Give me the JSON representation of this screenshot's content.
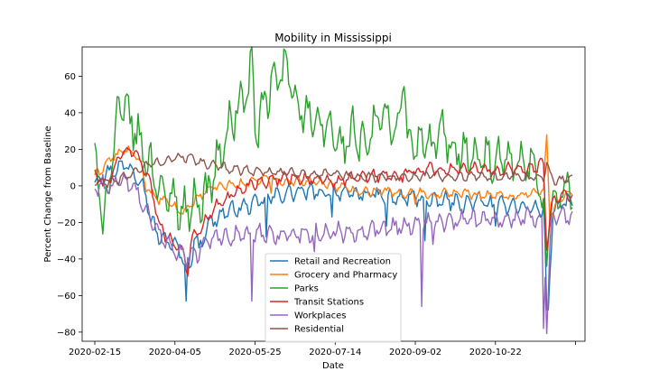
{
  "chart_data": {
    "type": "line",
    "title": "Mobility in Mississippi",
    "xlabel": "Date",
    "ylabel": "Percent Change from Baseline",
    "x_ticks": [
      "2020-02-15",
      "2020-04-05",
      "2020-05-25",
      "2020-07-14",
      "2020-09-02",
      "2020-10-22",
      ""
    ],
    "x_start": "2020-02-15",
    "x_end": "2020-12-09",
    "y_ticks": [
      60,
      40,
      20,
      0,
      -20,
      -40,
      -60,
      -80
    ],
    "ylim": [
      -85,
      76
    ],
    "grid": false,
    "legend_position": "lower-center",
    "series": [
      {
        "name": "Retail and Recreation",
        "color": "#1f77b4",
        "points": [
          [
            0,
            3
          ],
          [
            10,
            8
          ],
          [
            20,
            12
          ],
          [
            30,
            2
          ],
          [
            35,
            -18
          ],
          [
            40,
            -28
          ],
          [
            50,
            -32
          ],
          [
            55,
            -40
          ],
          [
            60,
            -45
          ],
          [
            62,
            -25
          ],
          [
            65,
            -35
          ],
          [
            70,
            -22
          ],
          [
            80,
            -15
          ],
          [
            90,
            -12
          ],
          [
            100,
            -10
          ],
          [
            110,
            -6
          ],
          [
            120,
            -4
          ],
          [
            130,
            -3
          ],
          [
            140,
            -4
          ],
          [
            150,
            -3
          ],
          [
            160,
            -5
          ],
          [
            170,
            -4
          ],
          [
            180,
            -6
          ],
          [
            190,
            -7
          ],
          [
            200,
            -6
          ],
          [
            210,
            -9
          ],
          [
            220,
            -8
          ],
          [
            230,
            -10
          ],
          [
            240,
            -8
          ],
          [
            250,
            -11
          ],
          [
            260,
            -10
          ],
          [
            270,
            -12
          ],
          [
            280,
            -13
          ],
          [
            283,
            -68
          ],
          [
            286,
            -12
          ],
          [
            295,
            -9
          ],
          [
            298,
            -9
          ]
        ],
        "dips": [
          [
            57,
            -63
          ],
          [
            107,
            -28
          ],
          [
            148,
            -17
          ],
          [
            182,
            -22
          ],
          [
            206,
            -30
          ],
          [
            250,
            -22
          ],
          [
            282,
            -68
          ]
        ]
      },
      {
        "name": "Grocery and Pharmacy",
        "color": "#ff7f0e",
        "points": [
          [
            0,
            5
          ],
          [
            10,
            15
          ],
          [
            20,
            20
          ],
          [
            28,
            14
          ],
          [
            32,
            0
          ],
          [
            36,
            -5
          ],
          [
            40,
            -8
          ],
          [
            45,
            -8
          ],
          [
            50,
            -12
          ],
          [
            55,
            -15
          ],
          [
            60,
            -10
          ],
          [
            70,
            -2
          ],
          [
            80,
            0
          ],
          [
            90,
            1
          ],
          [
            100,
            3
          ],
          [
            110,
            4
          ],
          [
            120,
            2
          ],
          [
            130,
            3
          ],
          [
            140,
            2
          ],
          [
            150,
            0
          ],
          [
            160,
            -2
          ],
          [
            170,
            -3
          ],
          [
            180,
            -2
          ],
          [
            190,
            -5
          ],
          [
            200,
            -3
          ],
          [
            210,
            -5
          ],
          [
            220,
            -4
          ],
          [
            230,
            -4
          ],
          [
            240,
            -5
          ],
          [
            250,
            -5
          ],
          [
            260,
            -6
          ],
          [
            270,
            -4
          ],
          [
            280,
            -3
          ],
          [
            282,
            28
          ],
          [
            284,
            -20
          ],
          [
            290,
            -6
          ],
          [
            298,
            -4
          ]
        ],
        "dips": [
          [
            110,
            -4
          ],
          [
            200,
            -10
          ],
          [
            282,
            28
          ]
        ]
      },
      {
        "name": "Parks",
        "color": "#2ca02c",
        "points": [
          [
            0,
            17
          ],
          [
            5,
            -20
          ],
          [
            10,
            10
          ],
          [
            15,
            40
          ],
          [
            20,
            42
          ],
          [
            25,
            30
          ],
          [
            30,
            20
          ],
          [
            35,
            10
          ],
          [
            40,
            2
          ],
          [
            45,
            -10
          ],
          [
            50,
            -5
          ],
          [
            55,
            -15
          ],
          [
            60,
            -10
          ],
          [
            65,
            -8
          ],
          [
            70,
            -5
          ],
          [
            75,
            10
          ],
          [
            80,
            20
          ],
          [
            85,
            35
          ],
          [
            90,
            45
          ],
          [
            95,
            50
          ],
          [
            98,
            70
          ],
          [
            100,
            30
          ],
          [
            105,
            40
          ],
          [
            110,
            55
          ],
          [
            115,
            60
          ],
          [
            120,
            65
          ],
          [
            125,
            50
          ],
          [
            130,
            40
          ],
          [
            135,
            35
          ],
          [
            140,
            30
          ],
          [
            145,
            35
          ],
          [
            150,
            25
          ],
          [
            155,
            20
          ],
          [
            160,
            30
          ],
          [
            165,
            25
          ],
          [
            170,
            20
          ],
          [
            175,
            35
          ],
          [
            180,
            40
          ],
          [
            185,
            30
          ],
          [
            190,
            35
          ],
          [
            193,
            65
          ],
          [
            195,
            25
          ],
          [
            200,
            20
          ],
          [
            205,
            25
          ],
          [
            210,
            20
          ],
          [
            215,
            30
          ],
          [
            220,
            25
          ],
          [
            225,
            20
          ],
          [
            230,
            20
          ],
          [
            235,
            15
          ],
          [
            240,
            15
          ],
          [
            245,
            15
          ],
          [
            250,
            10
          ],
          [
            255,
            15
          ],
          [
            260,
            10
          ],
          [
            265,
            10
          ],
          [
            270,
            10
          ],
          [
            275,
            8
          ],
          [
            280,
            -20
          ],
          [
            282,
            -34
          ],
          [
            285,
            -10
          ],
          [
            290,
            -5
          ],
          [
            298,
            0
          ]
        ],
        "dips": []
      },
      {
        "name": "Transit Stations",
        "color": "#d62728",
        "points": [
          [
            0,
            8
          ],
          [
            5,
            0
          ],
          [
            10,
            5
          ],
          [
            15,
            15
          ],
          [
            20,
            20
          ],
          [
            25,
            18
          ],
          [
            30,
            12
          ],
          [
            35,
            0
          ],
          [
            40,
            -20
          ],
          [
            45,
            -28
          ],
          [
            50,
            -32
          ],
          [
            55,
            -35
          ],
          [
            58,
            -48
          ],
          [
            60,
            -30
          ],
          [
            65,
            -25
          ],
          [
            70,
            -18
          ],
          [
            75,
            -12
          ],
          [
            80,
            -8
          ],
          [
            85,
            -5
          ],
          [
            90,
            -3
          ],
          [
            95,
            0
          ],
          [
            100,
            2
          ],
          [
            110,
            3
          ],
          [
            120,
            5
          ],
          [
            130,
            4
          ],
          [
            140,
            3
          ],
          [
            150,
            2
          ],
          [
            160,
            4
          ],
          [
            170,
            5
          ],
          [
            180,
            6
          ],
          [
            190,
            5
          ],
          [
            200,
            8
          ],
          [
            210,
            10
          ],
          [
            220,
            8
          ],
          [
            230,
            10
          ],
          [
            240,
            9
          ],
          [
            250,
            8
          ],
          [
            260,
            10
          ],
          [
            270,
            9
          ],
          [
            280,
            12
          ],
          [
            282,
            -32
          ],
          [
            285,
            -10
          ],
          [
            290,
            -5
          ],
          [
            298,
            -5
          ]
        ],
        "dips": []
      },
      {
        "name": "Workplaces",
        "color": "#9467bd",
        "points": [
          [
            0,
            0
          ],
          [
            10,
            0
          ],
          [
            20,
            2
          ],
          [
            25,
            -2
          ],
          [
            30,
            -10
          ],
          [
            35,
            -20
          ],
          [
            40,
            -25
          ],
          [
            45,
            -30
          ],
          [
            50,
            -35
          ],
          [
            55,
            -38
          ],
          [
            60,
            -40
          ],
          [
            65,
            -35
          ],
          [
            70,
            -30
          ],
          [
            75,
            -28
          ],
          [
            80,
            -27
          ],
          [
            90,
            -27
          ],
          [
            100,
            -27
          ],
          [
            110,
            -26
          ],
          [
            120,
            -27
          ],
          [
            130,
            -26
          ],
          [
            140,
            -26
          ],
          [
            150,
            -25
          ],
          [
            160,
            -25
          ],
          [
            170,
            -24
          ],
          [
            180,
            -23
          ],
          [
            190,
            -22
          ],
          [
            200,
            -21
          ],
          [
            210,
            -20
          ],
          [
            220,
            -20
          ],
          [
            230,
            -19
          ],
          [
            240,
            -18
          ],
          [
            250,
            -18
          ],
          [
            260,
            -18
          ],
          [
            270,
            -17
          ],
          [
            280,
            -17
          ],
          [
            282,
            -78
          ],
          [
            285,
            -17
          ],
          [
            290,
            -15
          ],
          [
            298,
            -19
          ]
        ],
        "dips": [
          [
            98,
            -63
          ],
          [
            137,
            -36
          ],
          [
            204,
            -66
          ],
          [
            211,
            -32
          ],
          [
            280,
            -78
          ]
        ]
      },
      {
        "name": "Residential",
        "color": "#8c564b",
        "points": [
          [
            0,
            2
          ],
          [
            10,
            2
          ],
          [
            20,
            5
          ],
          [
            25,
            8
          ],
          [
            30,
            10
          ],
          [
            35,
            12
          ],
          [
            40,
            13
          ],
          [
            45,
            14
          ],
          [
            50,
            15
          ],
          [
            55,
            16
          ],
          [
            60,
            15
          ],
          [
            65,
            13
          ],
          [
            70,
            12
          ],
          [
            75,
            11
          ],
          [
            80,
            10
          ],
          [
            90,
            9
          ],
          [
            100,
            8
          ],
          [
            110,
            8
          ],
          [
            120,
            7
          ],
          [
            130,
            7
          ],
          [
            140,
            6
          ],
          [
            150,
            6
          ],
          [
            160,
            5
          ],
          [
            170,
            5
          ],
          [
            180,
            5
          ],
          [
            190,
            5
          ],
          [
            200,
            5
          ],
          [
            210,
            6
          ],
          [
            220,
            5
          ],
          [
            230,
            5
          ],
          [
            240,
            5
          ],
          [
            250,
            5
          ],
          [
            260,
            5
          ],
          [
            270,
            4
          ],
          [
            280,
            5
          ],
          [
            282,
            12
          ],
          [
            285,
            4
          ],
          [
            290,
            3
          ],
          [
            298,
            5
          ]
        ],
        "dips": []
      }
    ]
  }
}
